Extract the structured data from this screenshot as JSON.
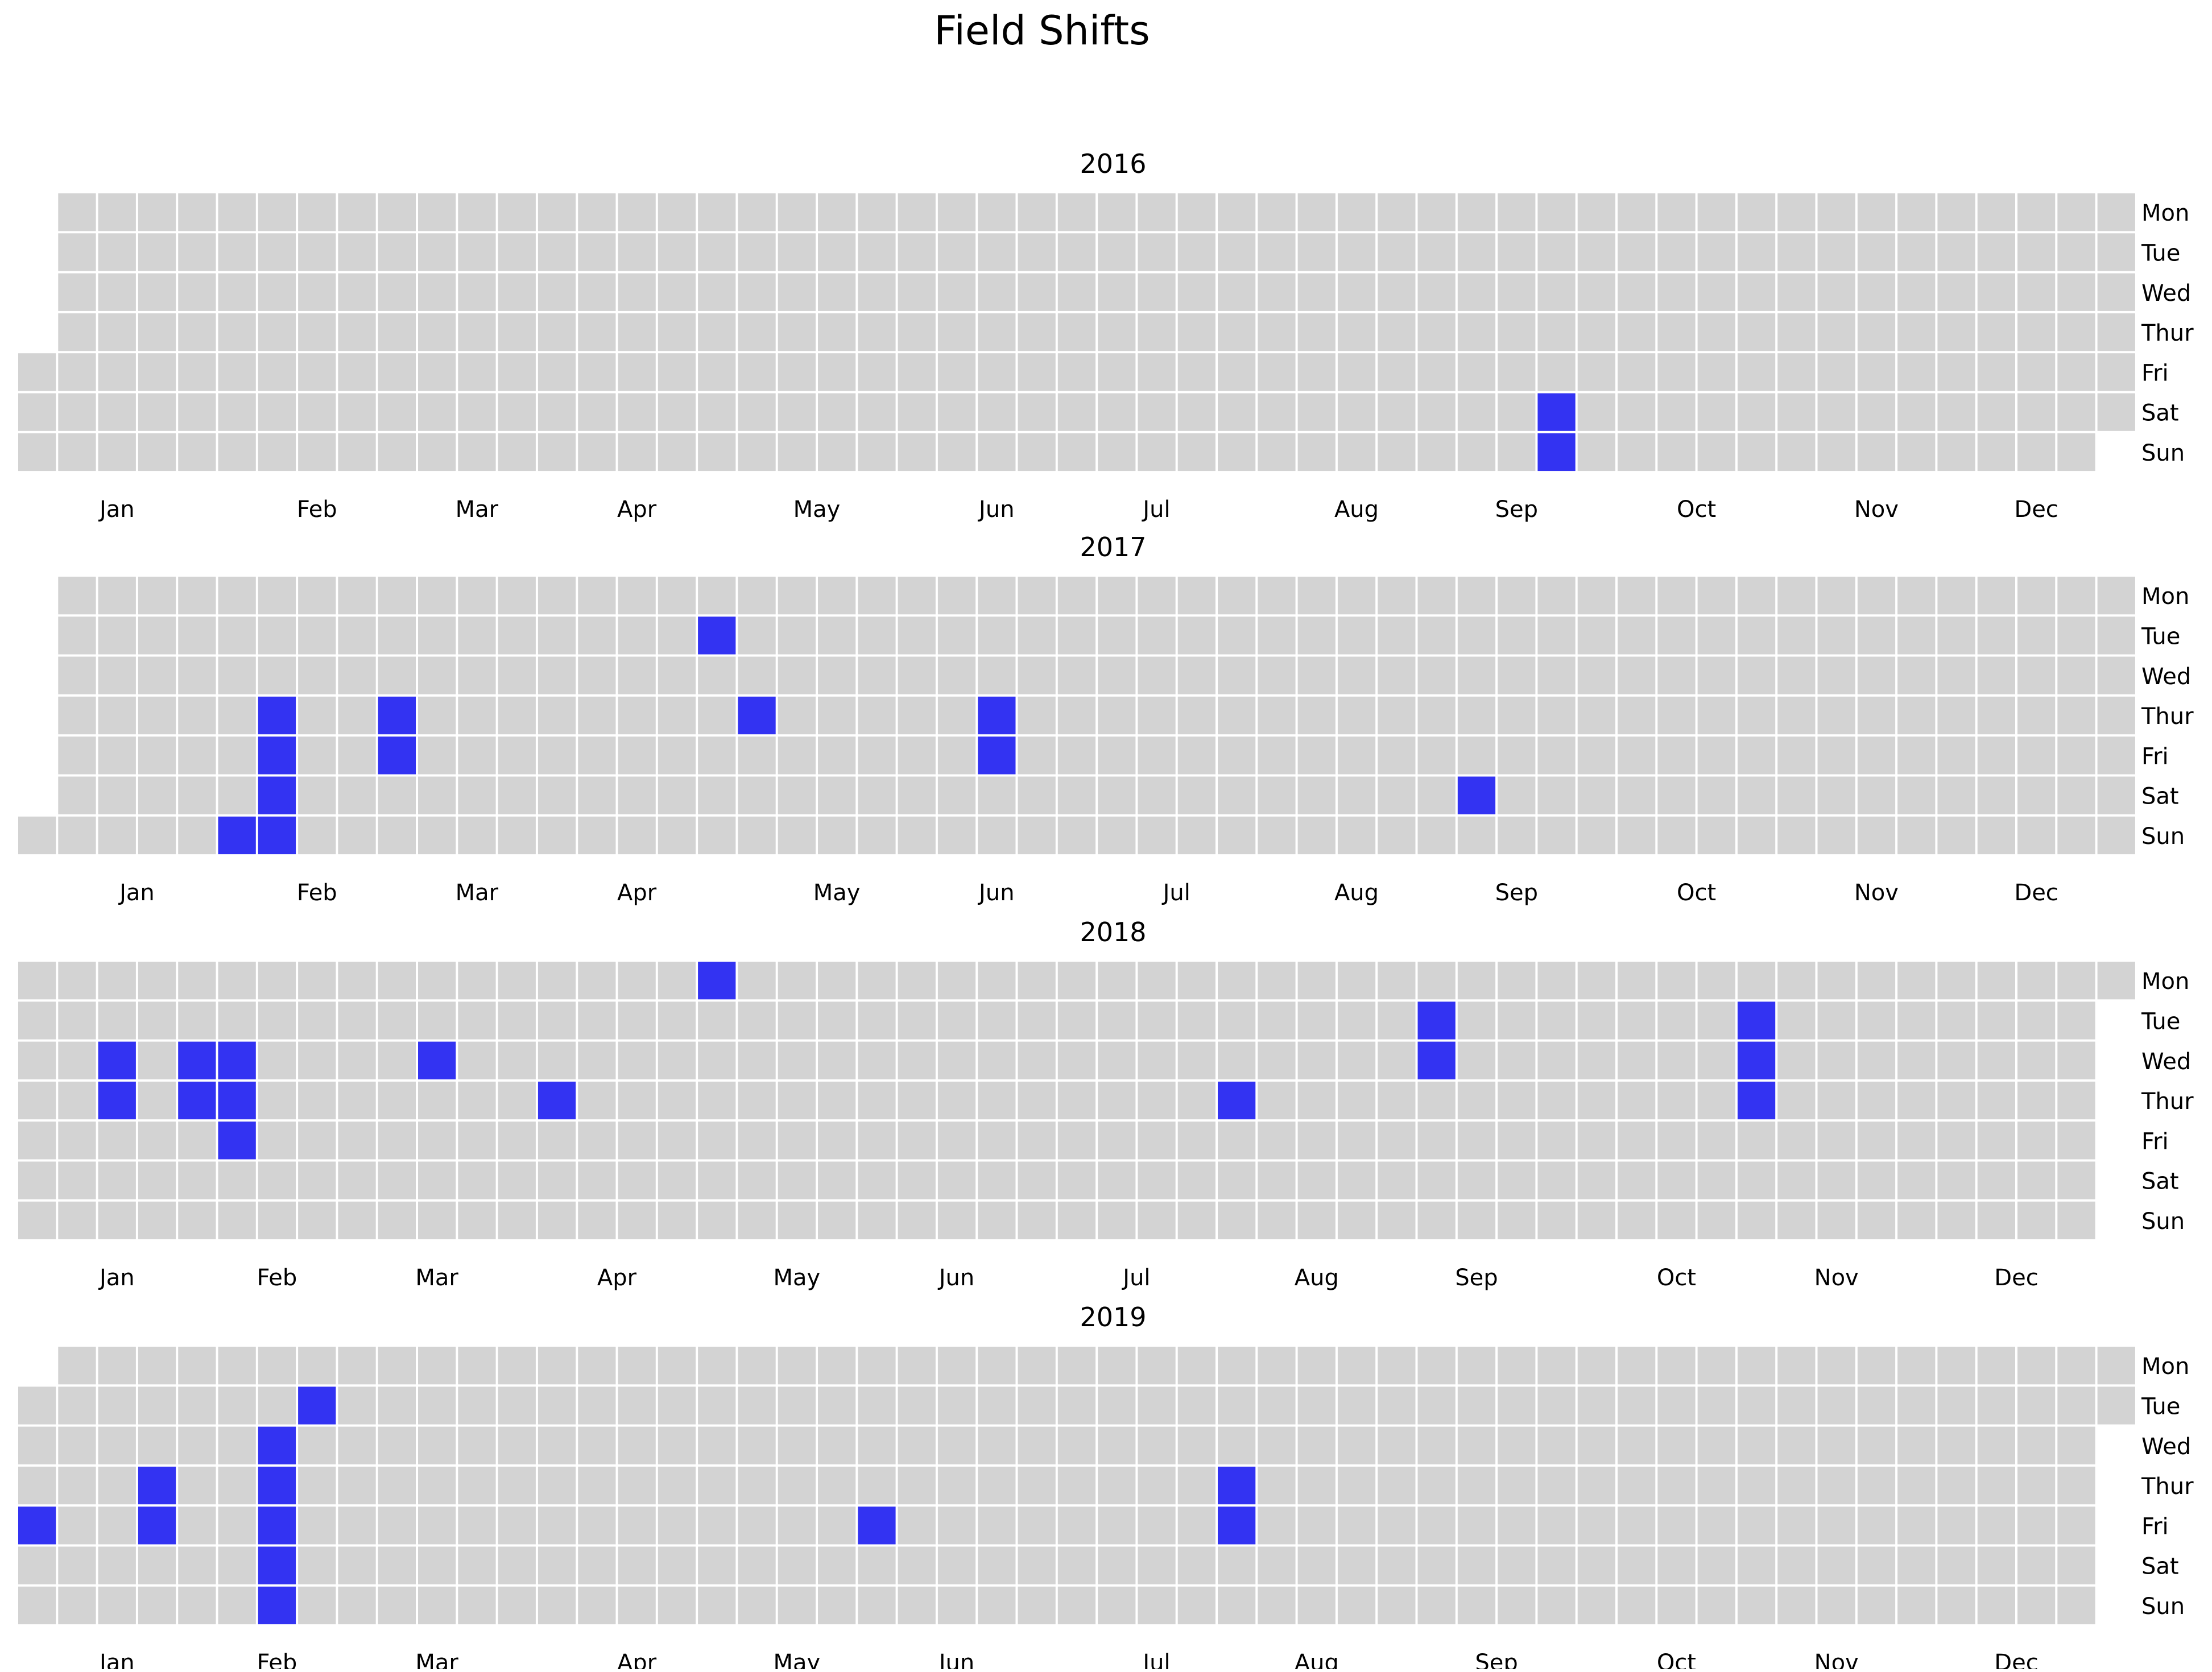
{
  "chart_data": {
    "type": "heatmap",
    "title": "Field Shifts",
    "weekday_labels": [
      "Mon",
      "Tue",
      "Wed",
      "Thur",
      "Fri",
      "Sat",
      "Sun"
    ],
    "month_labels": [
      "Jan",
      "Feb",
      "Mar",
      "Apr",
      "May",
      "Jun",
      "Jul",
      "Aug",
      "Sep",
      "Oct",
      "Nov",
      "Dec"
    ],
    "colors": {
      "empty": "#d3d3d3",
      "filled": "#3333f2",
      "border": "#ffffff"
    },
    "grid": false,
    "legend": "none",
    "years": [
      {
        "year": "2016",
        "dates": [
          "2016-09-24",
          "2016-09-25"
        ]
      },
      {
        "year": "2017",
        "dates": [
          "2017-02-05",
          "2017-02-09",
          "2017-02-10",
          "2017-02-11",
          "2017-02-12",
          "2017-03-02",
          "2017-03-03",
          "2017-04-25",
          "2017-05-04",
          "2017-06-15",
          "2017-06-16",
          "2017-09-09"
        ]
      },
      {
        "year": "2018",
        "dates": [
          "2018-01-17",
          "2018-01-18",
          "2018-01-31",
          "2018-02-01",
          "2018-02-07",
          "2018-02-08",
          "2018-02-09",
          "2018-03-14",
          "2018-04-05",
          "2018-04-30",
          "2018-08-02",
          "2018-09-04",
          "2018-09-05",
          "2018-10-30",
          "2018-10-31",
          "2018-11-01"
        ]
      },
      {
        "year": "2019",
        "dates": [
          "2019-01-04",
          "2019-01-24",
          "2019-01-25",
          "2019-02-13",
          "2019-02-14",
          "2019-02-15",
          "2019-02-16",
          "2019-02-17",
          "2019-02-19",
          "2019-05-31",
          "2019-08-01",
          "2019-08-02"
        ]
      }
    ]
  }
}
